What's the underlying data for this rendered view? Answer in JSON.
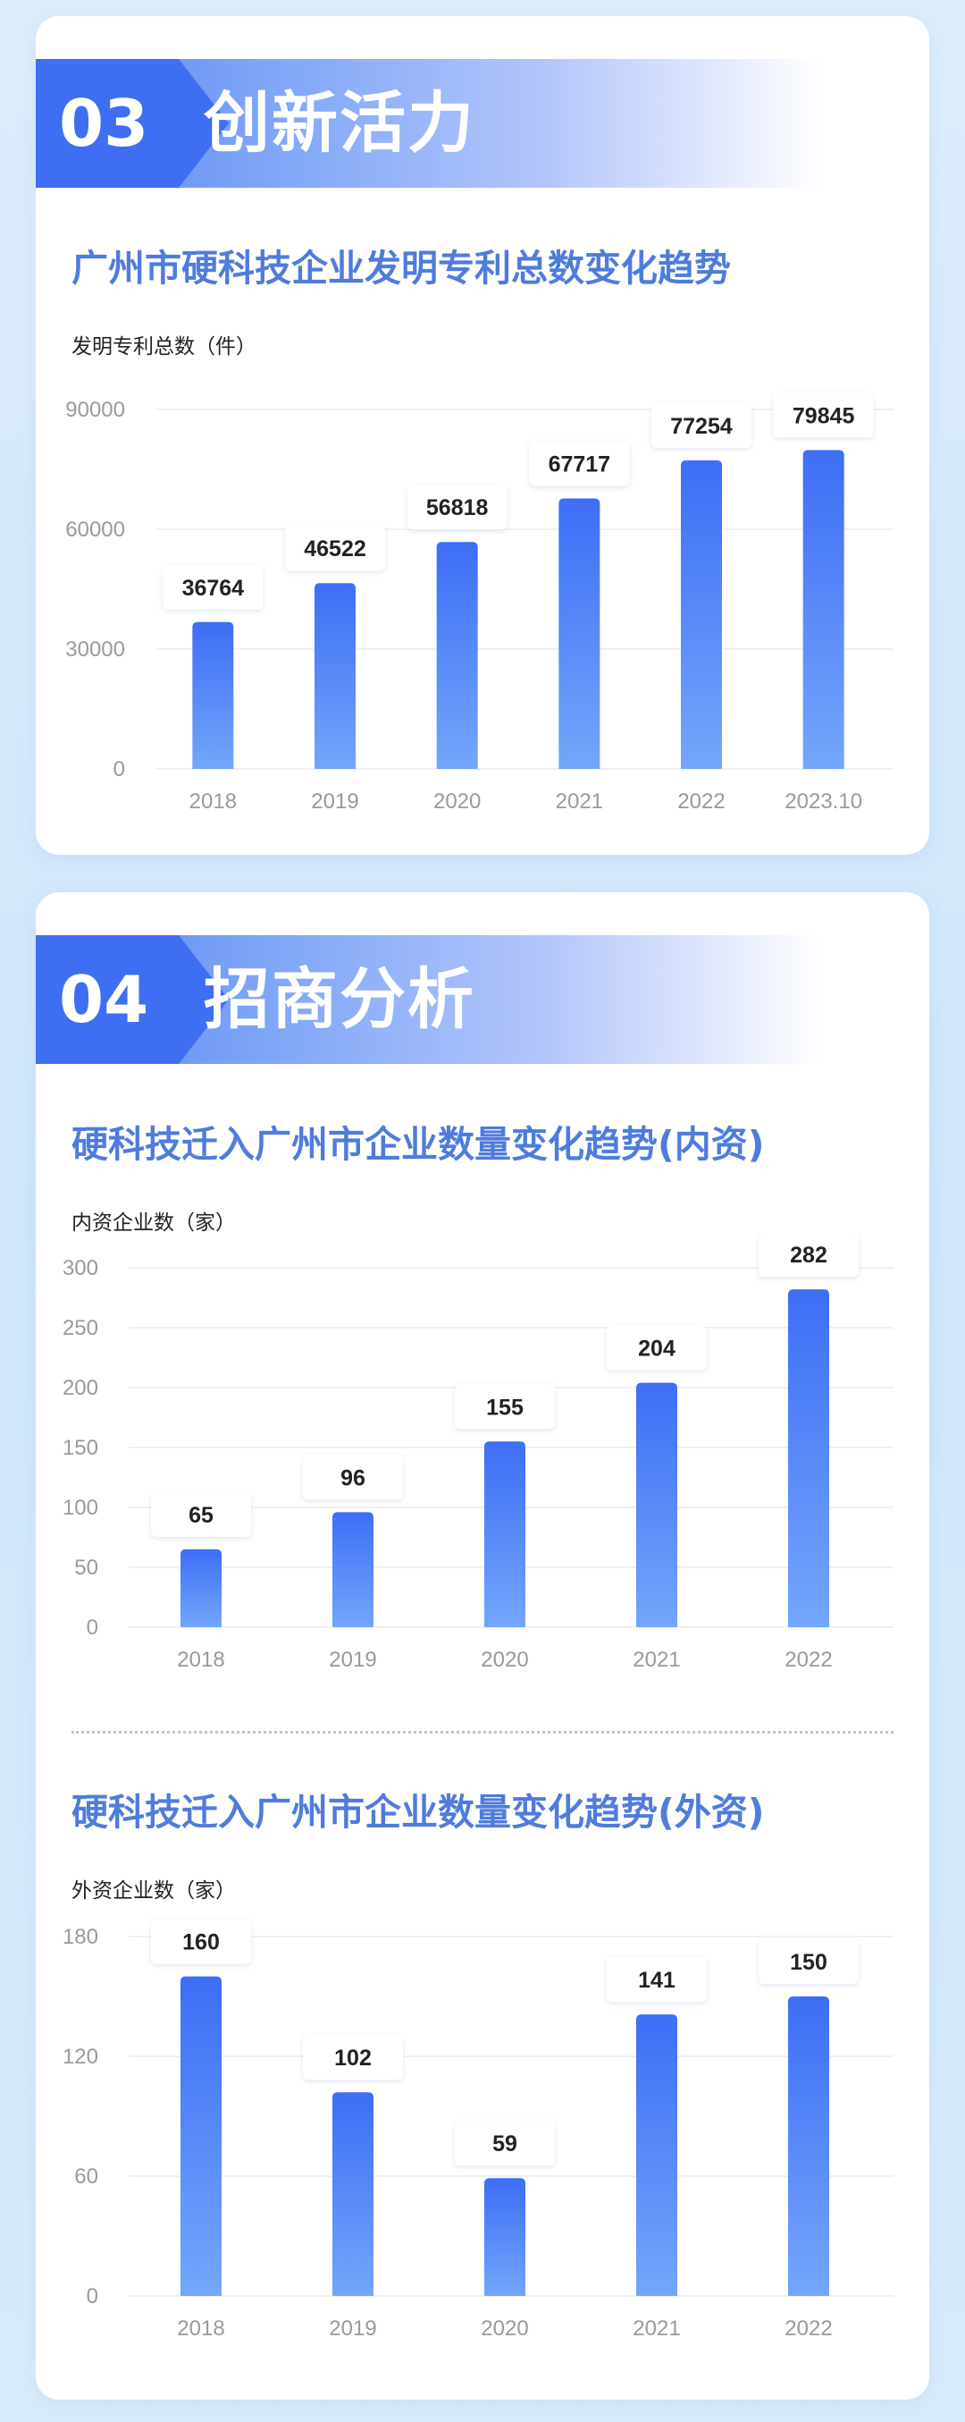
{
  "sections": [
    {
      "number": "03",
      "title": "创新活力"
    },
    {
      "number": "04",
      "title": "招商分析"
    }
  ],
  "colors": {
    "bar_top": "#3d6ef5",
    "bar_bottom": "#73a6fb",
    "title": "#4f7cdc",
    "axis_text": "#9a9a9a",
    "grid": "#ececec"
  },
  "chart_data": [
    {
      "type": "bar",
      "title": "广州市硬科技企业发明专利总数变化趋势",
      "ylabel": "发明专利总数（件）",
      "categories": [
        "2018",
        "2019",
        "2020",
        "2021",
        "2022",
        "2023.10"
      ],
      "values": [
        36764,
        46522,
        56818,
        67717,
        77254,
        79845
      ],
      "ylim": [
        0,
        90000
      ],
      "yticks": [
        0,
        30000,
        60000,
        90000
      ],
      "grid": true
    },
    {
      "type": "bar",
      "title": "硬科技迁入广州市企业数量变化趋势(内资)",
      "ylabel": "内资企业数（家）",
      "categories": [
        "2018",
        "2019",
        "2020",
        "2021",
        "2022"
      ],
      "values": [
        65,
        96,
        155,
        204,
        282
      ],
      "ylim": [
        0,
        300
      ],
      "yticks": [
        0,
        50,
        100,
        150,
        200,
        250,
        300
      ],
      "grid": true
    },
    {
      "type": "bar",
      "title": "硬科技迁入广州市企业数量变化趋势(外资)",
      "ylabel": "外资企业数（家）",
      "categories": [
        "2018",
        "2019",
        "2020",
        "2021",
        "2022"
      ],
      "values": [
        160,
        102,
        59,
        141,
        150
      ],
      "ylim": [
        0,
        180
      ],
      "yticks": [
        0,
        60,
        120,
        180
      ],
      "grid": true
    }
  ]
}
